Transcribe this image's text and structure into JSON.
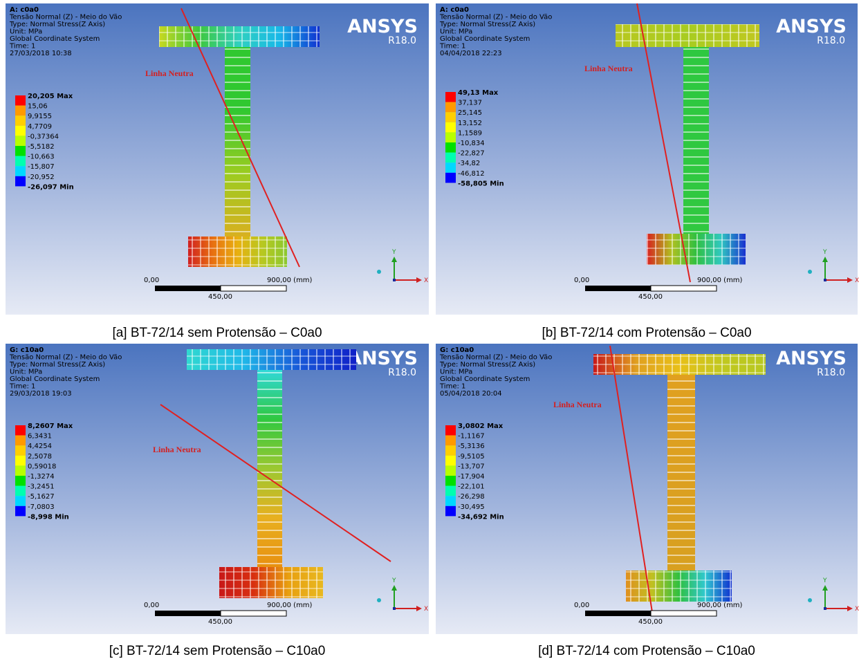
{
  "panels": [
    {
      "header": [
        "A: c0a0",
        "Tensão Normal (Z) - Meio do Vão",
        "Type: Normal Stress(Z Axis)",
        "Unit: MPa",
        "Global Coordinate System",
        "Time: 1",
        "27/03/2018 10:38"
      ],
      "legend": [
        "20,205 Max",
        "15,06",
        "9,9155",
        "4,7709",
        "-0,37364",
        "-5,5182",
        "-10,663",
        "-15,807",
        "-20,952",
        "-26,097 Min"
      ],
      "annotation": "Linha Neutra",
      "logo": {
        "name": "ANSYS",
        "version": "R18.0"
      },
      "scale": {
        "start": "0,00",
        "end": "900,00 (mm)",
        "mid": "450,00"
      },
      "axes": {
        "y": "Y",
        "x": "X"
      },
      "caption": "[a] BT-72/14 sem Protensão – C0a0"
    },
    {
      "header": [
        "A: c0a0",
        "Tensão Normal (Z) - Meio do Vão",
        "Type: Normal Stress(Z Axis)",
        "Unit: MPa",
        "Global Coordinate System",
        "Time: 1",
        "04/04/2018 22:23"
      ],
      "legend": [
        "49,13 Max",
        "37,137",
        "25,145",
        "13,152",
        "1,1589",
        "-10,834",
        "-22,827",
        "-34,82",
        "-46,812",
        "-58,805 Min"
      ],
      "annotation": "Linha Neutra",
      "logo": {
        "name": "ANSYS",
        "version": "R18.0"
      },
      "scale": {
        "start": "0,00",
        "end": "900,00 (mm)",
        "mid": "450,00"
      },
      "axes": {
        "y": "Y",
        "x": "X"
      },
      "caption": "[b] BT-72/14 com Protensão – C0a0"
    },
    {
      "header": [
        "G: c10a0",
        "Tensão Normal (Z) - Meio do Vão",
        "Type: Normal Stress(Z Axis)",
        "Unit: MPa",
        "Global Coordinate System",
        "Time: 1",
        "29/03/2018 19:03"
      ],
      "legend": [
        "8,2607 Max",
        "6,3431",
        "4,4254",
        "2,5078",
        "0,59018",
        "-1,3274",
        "-3,2451",
        "-5,1627",
        "-7,0803",
        "-8,998 Min"
      ],
      "annotation": "Linha Neutra",
      "logo": {
        "name": "ANSYS",
        "version": "R18.0"
      },
      "scale": {
        "start": "0,00",
        "end": "900,00 (mm)",
        "mid": "450,00"
      },
      "axes": {
        "y": "Y",
        "x": "X"
      },
      "caption": "[c] BT-72/14 sem Protensão – C10a0"
    },
    {
      "header": [
        "G: c10a0",
        "Tensão Normal (Z) - Meio do Vão",
        "Type: Normal Stress(Z Axis)",
        "Unit: MPa",
        "Global Coordinate System",
        "Time: 1",
        "05/04/2018 20:04"
      ],
      "legend": [
        "3,0802 Max",
        "-1,1167",
        "-5,3136",
        "-9,5105",
        "-13,707",
        "-17,904",
        "-22,101",
        "-26,298",
        "-30,495",
        "-34,692 Min"
      ],
      "annotation": "Linha Neutra",
      "logo": {
        "name": "ANSYS",
        "version": "R18.0"
      },
      "scale": {
        "start": "0,00",
        "end": "900,00 (mm)",
        "mid": "450,00"
      },
      "axes": {
        "y": "Y",
        "x": "X"
      },
      "caption": "[d] BT-72/14 com Protensão – C10a0"
    }
  ]
}
